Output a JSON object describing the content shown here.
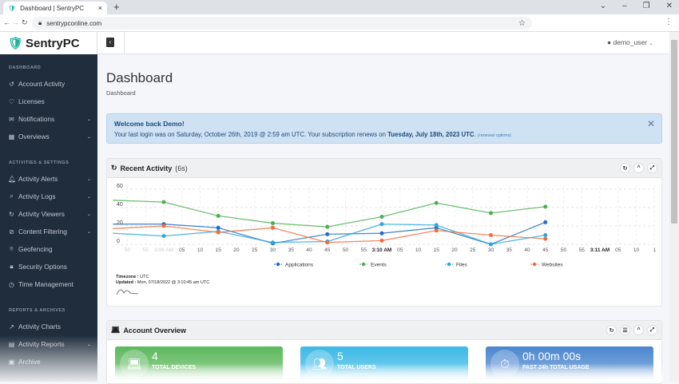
{
  "browser": {
    "tab_title": "Dashboard | SentryPC",
    "url": "sentrypconline.com"
  },
  "app": {
    "logo": "SentryPC",
    "user": "demo_user"
  },
  "sidebar": {
    "sections": [
      {
        "title": "DASHBOARD",
        "items": [
          {
            "label": "Account Activity",
            "icon": "history-icon"
          },
          {
            "label": "Licenses",
            "icon": "heart-icon"
          },
          {
            "label": "Notifications",
            "icon": "envelope-icon",
            "expand": true
          },
          {
            "label": "Overviews",
            "icon": "calendar-icon",
            "expand": true
          }
        ]
      },
      {
        "title": "ACTIVITIES & SETTINGS",
        "items": [
          {
            "label": "Activity Alerts",
            "icon": "bell-icon",
            "expand": true
          },
          {
            "label": "Activity Logs",
            "icon": "search-icon",
            "expand": true
          },
          {
            "label": "Activity Viewers",
            "icon": "refresh-icon",
            "expand": true
          },
          {
            "label": "Content Filtering",
            "icon": "ban-icon",
            "expand": true
          },
          {
            "label": "Geofencing",
            "icon": "map-pin-icon"
          },
          {
            "label": "Security Options",
            "icon": "lock-icon"
          },
          {
            "label": "Time Management",
            "icon": "clock-icon"
          }
        ]
      },
      {
        "title": "REPORTS & ARCHIVES",
        "items": [
          {
            "label": "Activity Charts",
            "icon": "chart-icon"
          },
          {
            "label": "Activity Reports",
            "icon": "file-icon",
            "expand": true
          },
          {
            "label": "Archive",
            "icon": "archive-icon"
          }
        ]
      }
    ]
  },
  "page": {
    "title": "Dashboard",
    "breadcrumb": "Dashboard"
  },
  "alert": {
    "title": "Welcome back Demo!",
    "message": "Your last login was on Saturday, October 26th, 2019 @ 2:59 am UTC.  Your subscription renews on ",
    "renew_date": "Tuesday, July 18th, 2023 UTC",
    "after": ". ",
    "link": "(renewal options)"
  },
  "recent": {
    "title": "Recent Activity",
    "interval": "(6s)",
    "timezone_label": "Timezone :",
    "timezone": " UTC",
    "updated_label": "Updated :",
    "updated": " Mon, 07/18/2022 @ 3:10:45 am UTC"
  },
  "chart_data": {
    "type": "line",
    "y_ticks": [
      "0",
      "20",
      "40",
      "60"
    ],
    "ylim": [
      0,
      60
    ],
    "grid": true,
    "legend": "bottom",
    "x_range": [
      "3:08:46",
      "3:11:15"
    ],
    "x_tick_labels": [
      "50",
      "55",
      "3:09 AM",
      "05",
      "10",
      "15",
      "20",
      "25",
      "30",
      "35",
      "40",
      "45",
      "50",
      "55",
      "3:10 AM",
      "05",
      "10",
      "15",
      "20",
      "25",
      "30",
      "35",
      "40",
      "45",
      "50",
      "55",
      "3:11 AM",
      "05",
      "10",
      "1"
    ],
    "x": [
      "3:08:46",
      "3:09:00",
      "3:09:15",
      "3:09:30",
      "3:09:45",
      "3:10:00",
      "3:10:15",
      "3:10:30",
      "3:10:45"
    ],
    "series": [
      {
        "name": "Applications",
        "color": "#1f6fc5",
        "values": [
          22,
          22,
          18,
          1,
          11,
          12,
          18,
          0,
          24
        ]
      },
      {
        "name": "Events",
        "color": "#4caf50",
        "values": [
          48,
          46,
          31,
          23,
          19,
          30,
          45,
          34,
          41
        ]
      },
      {
        "name": "Files",
        "color": "#29a8e0",
        "values": [
          12,
          9,
          14,
          2,
          3,
          22,
          21,
          0,
          10
        ]
      },
      {
        "name": "Websites",
        "color": "#f26b3a",
        "values": [
          17,
          20,
          13,
          18,
          2,
          4,
          15,
          10,
          6
        ]
      }
    ]
  },
  "overview": {
    "title": "Account Overview",
    "boxes": [
      {
        "value": "4",
        "label": "TOTAL DEVICES",
        "color": "#5cb85c",
        "icon": "laptop-icon"
      },
      {
        "value": "5",
        "label": "TOTAL USERS",
        "color": "#3bb9e6",
        "icon": "users-icon"
      },
      {
        "value": "0h 00m 00s",
        "label": "PAST 24h TOTAL USAGE",
        "color": "#4a86cf",
        "icon": "stopwatch-icon"
      }
    ]
  }
}
